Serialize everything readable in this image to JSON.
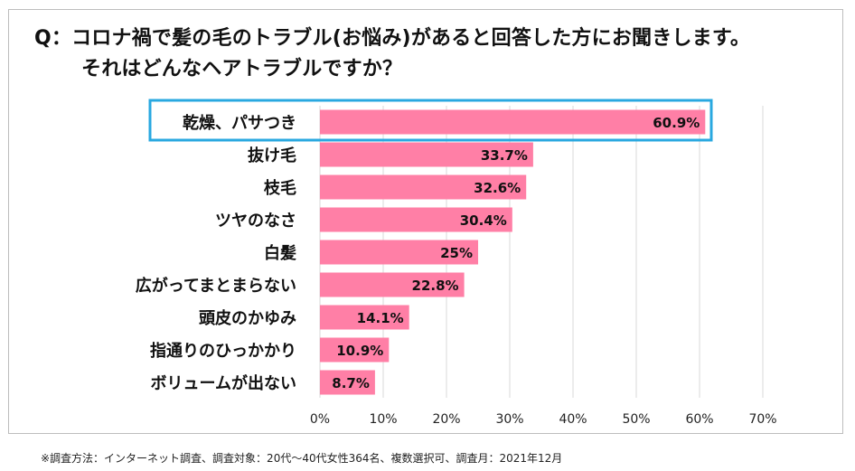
{
  "question": {
    "line1": "Q：コロナ禍で髪の毛のトラブル(お悩み)があると回答した方にお聞きします。",
    "line2": "それはどんなヘアトラブルですか？"
  },
  "footnote": "※調査方法：インターネット調査、調査対象：20代～40代女性364名、複数選択可、調査月：2021年12月",
  "colors": {
    "bar": "#ff7fa6",
    "highlight_border": "#29a8e0",
    "grid": "#d9d9d9"
  },
  "chart_data": {
    "type": "bar",
    "orientation": "horizontal",
    "categories": [
      "乾燥、パサつき",
      "抜け毛",
      "枝毛",
      "ツヤのなさ",
      "白髪",
      "広がってまとまらない",
      "頭皮のかゆみ",
      "指通りのひっかかり",
      "ボリュームが出ない"
    ],
    "values": [
      60.9,
      33.7,
      32.6,
      30.4,
      25,
      22.8,
      14.1,
      10.9,
      8.7
    ],
    "value_labels": [
      "60.9%",
      "33.7%",
      "32.6%",
      "30.4%",
      "25%",
      "22.8%",
      "14.1%",
      "10.9%",
      "8.7%"
    ],
    "xlim": [
      0,
      70
    ],
    "ticks": [
      0,
      10,
      20,
      30,
      40,
      50,
      60,
      70
    ],
    "tick_labels": [
      "0%",
      "10%",
      "20%",
      "30%",
      "40%",
      "50%",
      "60%",
      "70%"
    ],
    "highlighted_category": "乾燥、パサつき",
    "grid": true
  }
}
